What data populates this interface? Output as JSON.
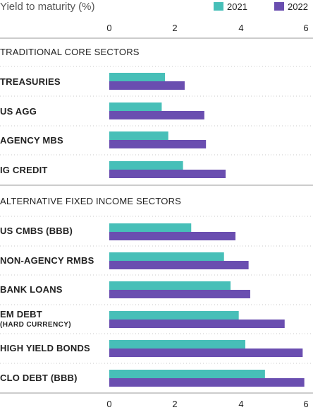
{
  "chart_data": {
    "type": "bar",
    "orientation": "horizontal",
    "title": "Yield to maturity (%)",
    "xlim": [
      0,
      6
    ],
    "ticks": [
      "0",
      "2",
      "4",
      "6"
    ],
    "legend_position": "top-right",
    "grid": false,
    "series": [
      {
        "name": "2021",
        "color": "#47bfb8"
      },
      {
        "name": "2022",
        "color": "#6a4eb0"
      }
    ],
    "sections": [
      {
        "label": "TRADITIONAL CORE SECTORS",
        "categories": [
          {
            "label": "TREASURIES",
            "values": [
              1.7,
              2.3
            ]
          },
          {
            "label": "US AGG",
            "values": [
              1.6,
              2.9
            ]
          },
          {
            "label": "AGENCY MBS",
            "values": [
              1.8,
              2.95
            ]
          },
          {
            "label": "IG CREDIT",
            "values": [
              2.25,
              3.55
            ]
          }
        ]
      },
      {
        "label": "ALTERNATIVE FIXED INCOME SECTORS",
        "categories": [
          {
            "label": "US CMBS (BBB)",
            "values": [
              2.5,
              3.85
            ]
          },
          {
            "label": "NON-AGENCY RMBS",
            "values": [
              3.5,
              4.25
            ]
          },
          {
            "label": "BANK LOANS",
            "values": [
              3.7,
              4.3
            ]
          },
          {
            "label": "EM DEBT",
            "sublabel": "(HARD CURRENCY)",
            "values": [
              3.95,
              5.35
            ]
          },
          {
            "label": "HIGH YIELD BONDS",
            "values": [
              4.15,
              5.9
            ]
          },
          {
            "label": "CLO DEBT (BBB)",
            "values": [
              4.75,
              5.95
            ]
          }
        ]
      }
    ]
  }
}
